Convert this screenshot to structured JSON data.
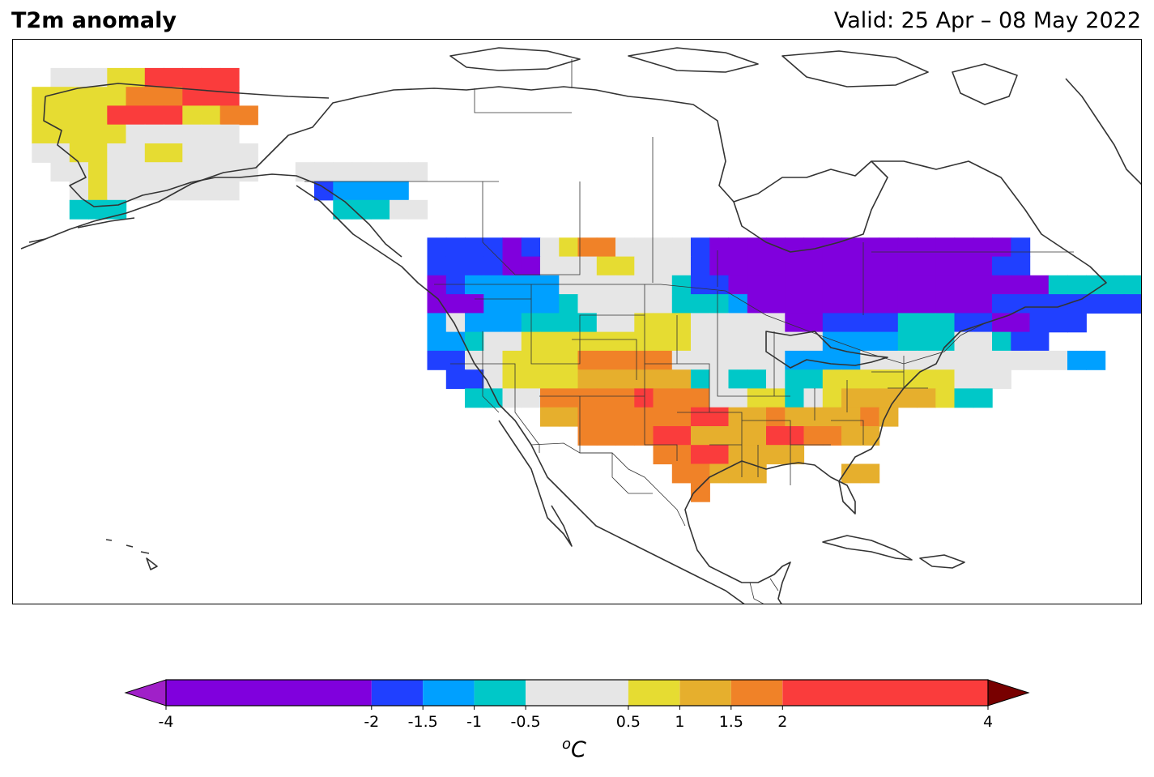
{
  "header": {
    "title": "T2m anomaly",
    "valid": "Valid: 25 Apr – 08 May 2022"
  },
  "colorbar": {
    "unit_base": "C",
    "unit_sup": "o",
    "levels": [
      -4,
      -2,
      -1.5,
      -1,
      -0.5,
      0.5,
      1,
      1.5,
      2,
      4
    ],
    "tick_labels": [
      "-4",
      "-2",
      "-1.5",
      "-1",
      "-0.5",
      "0.5",
      "1",
      "1.5",
      "2",
      "4"
    ],
    "colors": [
      "#8000dd",
      "#2040ff",
      "#00a0ff",
      "#00c8c8",
      "#e6e6e6",
      "#e6dc32",
      "#e6af2d",
      "#f08228",
      "#fa3c3c"
    ],
    "under_color": "#a020c8",
    "over_color": "#780000"
  },
  "map": {
    "projection": "plate-carree",
    "extent_lon": [
      -170,
      -50
    ],
    "extent_lat": [
      10,
      70
    ],
    "cell_size_deg": 2,
    "color_key": {
      "P": "#8000dd",
      "B": "#2040ff",
      "L": "#00a0ff",
      "C": "#00c8c8",
      "G": "#e6e6e6",
      "Y": "#e6dc32",
      "Y2": "#e6af2d",
      "O": "#f08228",
      "R": "#fa3c3c"
    },
    "grid": [
      {
        "lat": 66,
        "lon0": -165,
        "cells": "GGGYYRRRRR"
      },
      {
        "lat": 64,
        "lon0": -167,
        "cells": "YYYYYOOORRR"
      },
      {
        "lat": 62,
        "lon0": -167,
        "cells": "YYYYRRRRYYOO"
      },
      {
        "lat": 60,
        "lon0": -167,
        "cells": "YYYYYGGGGGG"
      },
      {
        "lat": 58,
        "lon0": -167,
        "cells": "GGYYGGYYGGGG"
      },
      {
        "lat": 56,
        "lon0": -165,
        "cells": "GGYGGGGGGGG"
      },
      {
        "lat": 54,
        "lon0": -163,
        "cells": "GYGGGGGGG"
      },
      {
        "lat": 52,
        "lon0": -163,
        "cells": "CCC"
      },
      {
        "lat": 56,
        "lon0": -139,
        "cells": "GGGGGGG"
      },
      {
        "lat": 54,
        "lon0": -137,
        "cells": "BLLLL"
      },
      {
        "lat": 52,
        "lon0": -135,
        "cells": "CCCGG"
      },
      {
        "lat": 48,
        "lon0": -125,
        "cells": "BBBBPBGYOOGGGGBPPPPPPPPPPPPPPPPB"
      },
      {
        "lat": 46,
        "lon0": -125,
        "cells": "BBBBPPGGGYYGGGBPPPPPPPPPPPPPPPBB"
      },
      {
        "lat": 44,
        "lon0": -125,
        "cells": "PBLLLLLGGGGGGCBBPPPPPPPPPPPPPPPPPCCCCCLLB"
      },
      {
        "lat": 42,
        "lon0": -125,
        "cells": "PPPLLLLCGGGGGCCCLPPPPPPPPPPPPPBBBBBBBBLLC"
      },
      {
        "lat": 40,
        "lon0": -125,
        "cells": "LGLLLCCCCGGYYYGGGGGPPBBBBCCCBBPPBBB"
      },
      {
        "lat": 38,
        "lon0": -125,
        "cells": "LLCGGYYYYYYYYYGGGGGGGLLLLCCCGGCBB"
      },
      {
        "lat": 36,
        "lon0": -125,
        "cells": "BBGGYYYYOOOOOGGGGGGLLLLGGGGGGGGGGGLL"
      },
      {
        "lat": 34,
        "lon0": -123,
        "cells": "BBGYYYYY2Y2Y2Y2Y2Y2CGCCGCCYYYYYYYGGG"
      },
      {
        "lat": 32,
        "lon0": -121,
        "cells": "CCGGOOOOOROOOGGYYCGYY2Y2Y2Y2Y2YCC"
      },
      {
        "lat": 30,
        "lon0": -113,
        "cells": "Y2Y2OOOOOORRY2Y2OY2Y2Y2Y2OY2"
      },
      {
        "lat": 28,
        "lon0": -109,
        "cells": "OOOORRY2Y2Y2Y2RROOY2Y2"
      },
      {
        "lat": 26,
        "lon0": -101,
        "cells": "OORRY2Y2Y2Y2"
      },
      {
        "lat": 24,
        "lon0": -99,
        "cells": "OOY2Y2Y2"
      },
      {
        "lat": 22,
        "lon0": -97,
        "cells": "O"
      },
      {
        "lat": 24,
        "lon0": -81,
        "cells": "Y2Y2"
      }
    ]
  }
}
